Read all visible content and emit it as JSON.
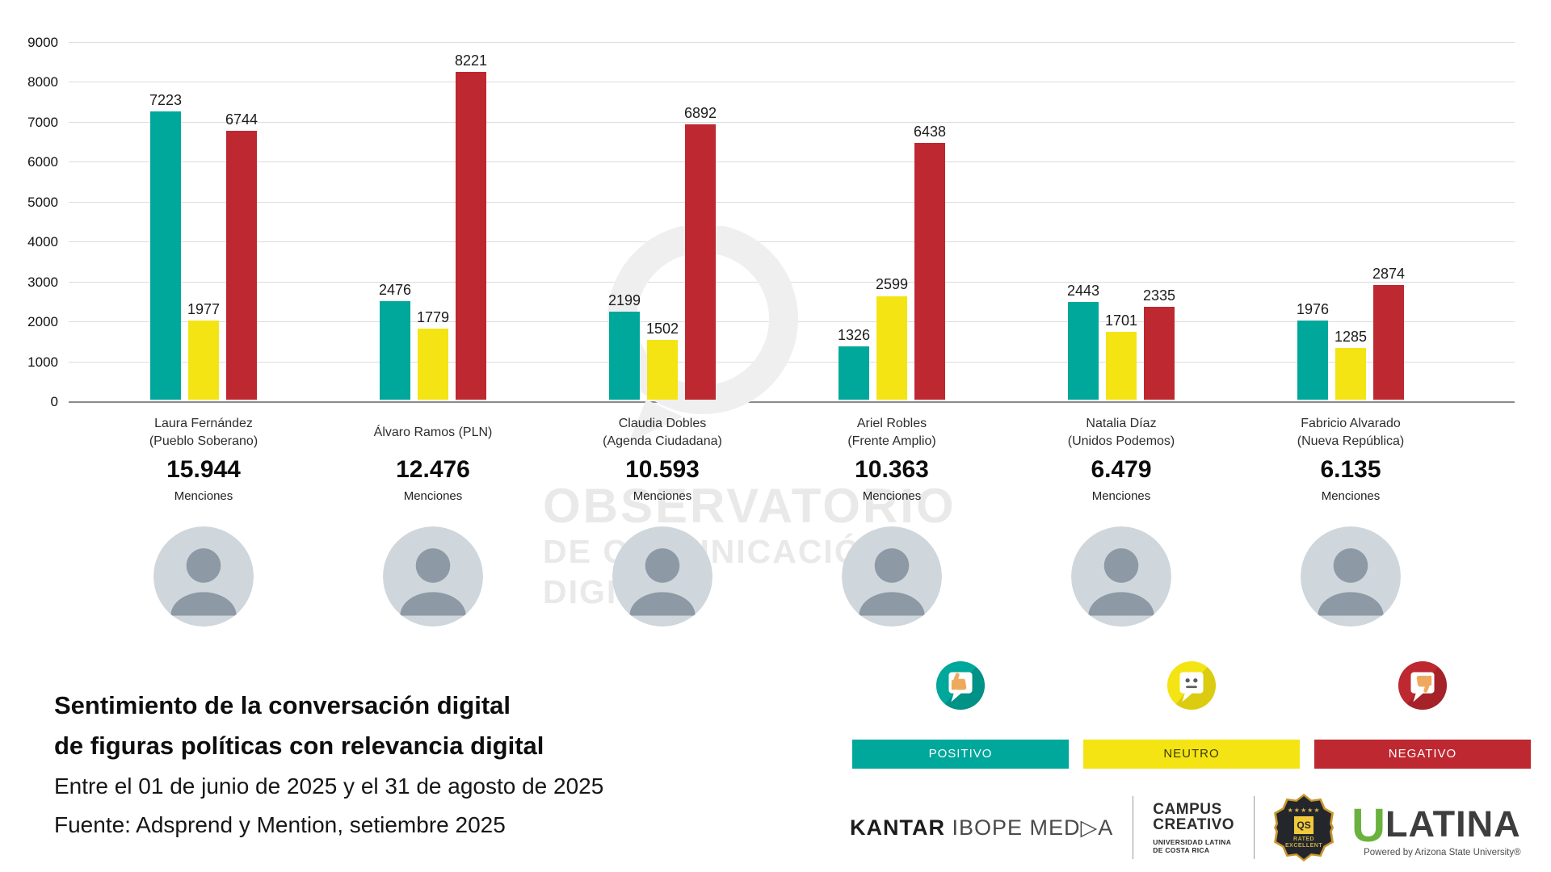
{
  "chart_data": {
    "type": "bar",
    "title": "Sentimiento de la conversación digital de figuras políticas con relevancia digital",
    "xlabel": "",
    "ylabel": "",
    "ylim": [
      0,
      9000
    ],
    "ytick_step": 1000,
    "grid": true,
    "legend_position": "bottom-right",
    "series_names": [
      "POSITIVO",
      "NEUTRO",
      "NEGATIVO"
    ],
    "series_colors": [
      "#00A79B",
      "#F4E414",
      "#BE2830"
    ],
    "mentions_caption": "Menciones",
    "groups": [
      {
        "slug": "laura-fernandez",
        "name_lines": [
          "Laura Fernández",
          "(Pueblo Soberano)"
        ],
        "total": "15.944",
        "values": [
          7223,
          1977,
          6744
        ]
      },
      {
        "slug": "alvaro-ramos",
        "name_lines": [
          "Álvaro Ramos (PLN)"
        ],
        "total": "12.476",
        "values": [
          2476,
          1779,
          8221
        ]
      },
      {
        "slug": "claudia-dobles",
        "name_lines": [
          "Claudia Dobles",
          "(Agenda Ciudadana)"
        ],
        "total": "10.593",
        "values": [
          2199,
          1502,
          6892
        ]
      },
      {
        "slug": "ariel-robles",
        "name_lines": [
          "Ariel Robles",
          "(Frente Amplio)"
        ],
        "total": "10.363",
        "values": [
          1326,
          2599,
          6438
        ]
      },
      {
        "slug": "natalia-diaz",
        "name_lines": [
          "Natalia Díaz",
          "(Unidos Podemos)"
        ],
        "total": "6.479",
        "values": [
          2443,
          1701,
          2335
        ]
      },
      {
        "slug": "fabricio-alvarado",
        "name_lines": [
          "Fabricio Alvarado",
          "(Nueva República)"
        ],
        "total": "6.135",
        "values": [
          1976,
          1285,
          2874
        ]
      }
    ]
  },
  "watermark": {
    "line1": "OBSERVATORIO",
    "line2": "DE COMUNICACIÓN DIGITAL"
  },
  "footer": {
    "title_line1": "Sentimiento de la conversación digital",
    "title_line2": "de figuras políticas con relevancia digital",
    "subtitle": "Entre el 01 de junio de 2025 y el 31 de agosto de 2025",
    "source": "Fuente: Adsprend y Mention, setiembre 2025"
  },
  "legend": {
    "items": [
      {
        "label": "POSITIVO",
        "color": "#00A79B",
        "label_color": "#ffffff",
        "icon": "thumb-up"
      },
      {
        "label": "NEUTRO",
        "color": "#F4E414",
        "label_color": "#3c3c06",
        "icon": "neutral-face"
      },
      {
        "label": "NEGATIVO",
        "color": "#BE2830",
        "label_color": "#ffffff",
        "icon": "thumb-down"
      }
    ]
  },
  "logos": {
    "kantar_bold": "KANTAR",
    "kantar_light": " IBOPE MED▷A",
    "campus_line1": "CAMPUS",
    "campus_line2": "CREATIVO",
    "campus_sub1": "UNIVERSIDAD LATINA",
    "campus_sub2": "DE COSTA RICA",
    "badge_stars": "★★★★★",
    "badge_qs": "QS",
    "badge_line1": "RATED",
    "badge_line2": "EXCELLENT",
    "ulatina_u": "U",
    "ulatina_rest": "LATINA",
    "ulatina_powered": "Powered by Arizona State University®"
  }
}
